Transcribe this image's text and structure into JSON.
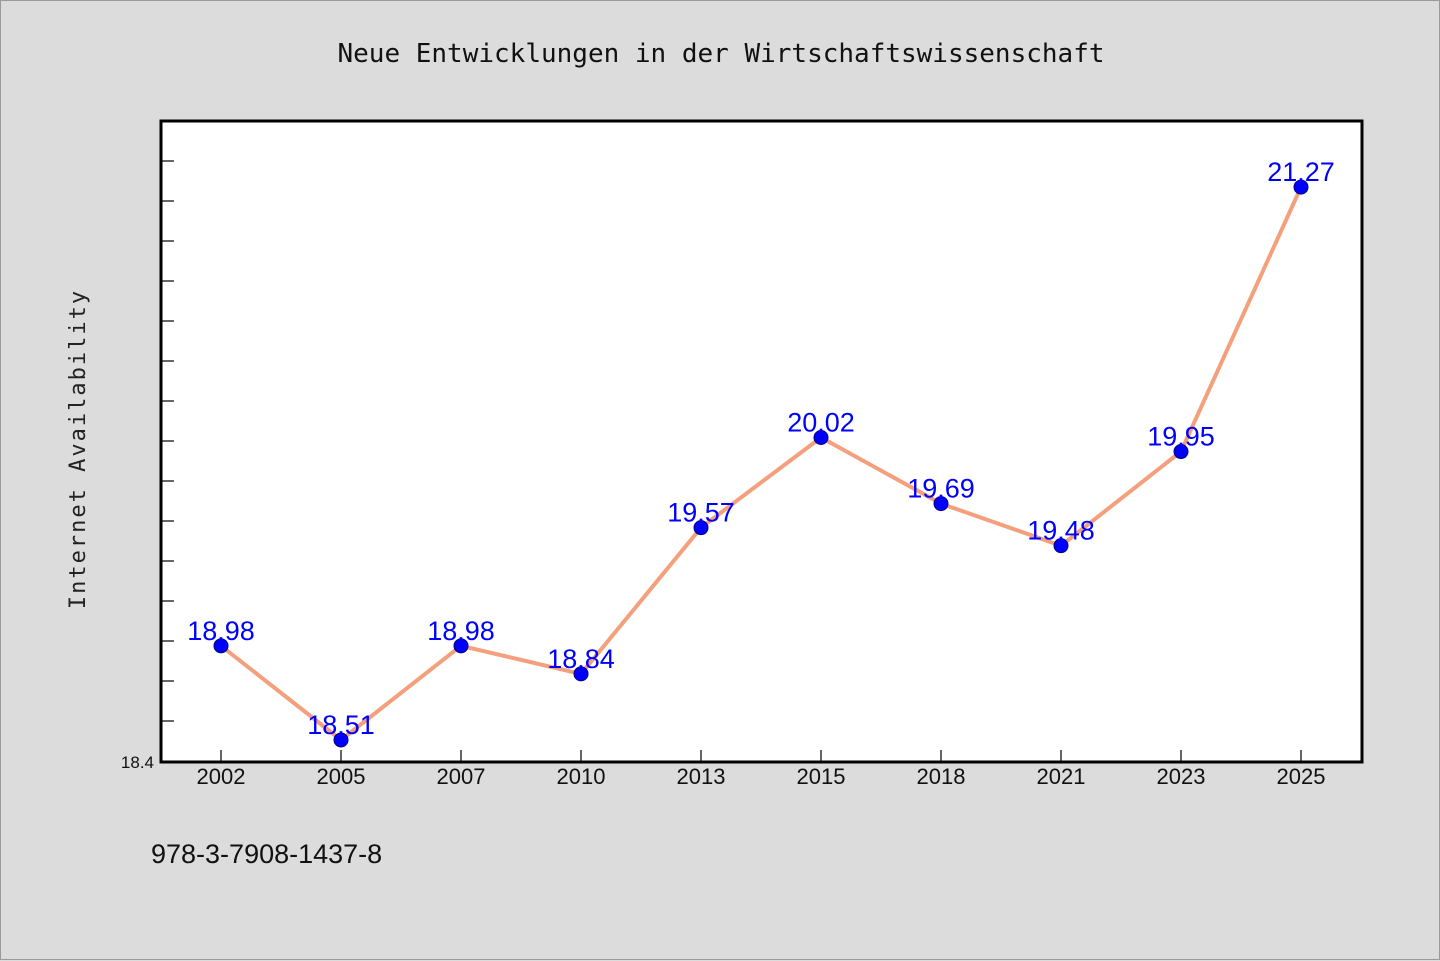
{
  "chart_data": {
    "type": "line",
    "title": "Neue Entwicklungen in der Wirtschaftswissenschaft",
    "xlabel": "",
    "ylabel": "Internet Availability",
    "categories": [
      "2002",
      "2005",
      "2007",
      "2010",
      "2013",
      "2015",
      "2018",
      "2021",
      "2023",
      "2025"
    ],
    "series": [
      {
        "values": [
          18.98,
          18.51,
          18.98,
          18.84,
          19.57,
          20.02,
          19.69,
          19.48,
          19.95,
          21.27
        ],
        "data_labels": [
          "18.98",
          "18.51",
          "18.98",
          "18.84",
          "19.57",
          "20.02",
          "19.69",
          "19.48",
          "19.95",
          "21.27"
        ]
      }
    ],
    "ylim": [
      18.4,
      21.6
    ],
    "y_tick_label": "18.4",
    "grid": false,
    "legend": "none",
    "line_color": "#f4a07c",
    "marker_color": "#0000ff",
    "label_color": "#0000ff"
  },
  "footer": {
    "isbn": "978-3-7908-1437-8"
  }
}
